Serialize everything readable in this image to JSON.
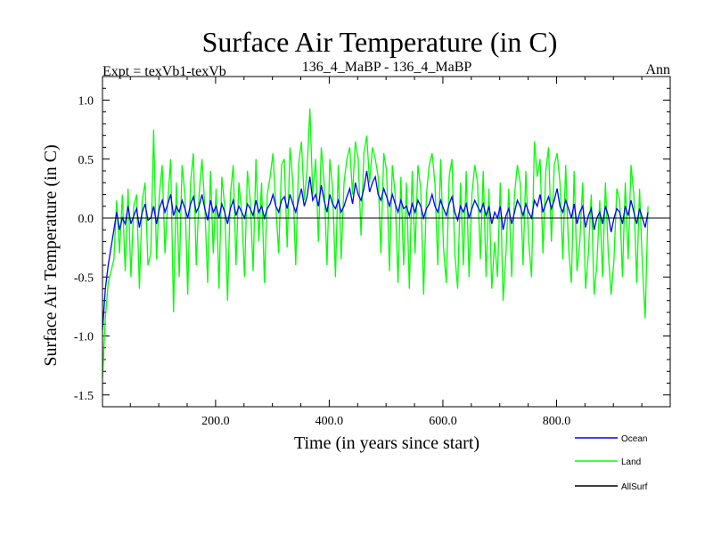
{
  "chart_data": {
    "type": "line",
    "title": "Surface Air Temperature (in C)",
    "subtitle_left": "Expt = texVb1-texVb",
    "subtitle_center": "136_4_MaBP - 136_4_MaBP",
    "subtitle_right": "Ann",
    "xlabel": "Time (in years since start)",
    "ylabel": "Surface Air Temperature (in C)",
    "xlim": [
      1,
      1000
    ],
    "ylim": [
      -1.6,
      1.2
    ],
    "x_ticks": [
      200,
      400,
      600,
      800
    ],
    "x_tick_labels": [
      "200.0",
      "400.0",
      "600.0",
      "800.0"
    ],
    "y_ticks": [
      -1.5,
      -1.0,
      -0.5,
      0.0,
      0.5,
      1.0
    ],
    "y_tick_labels": [
      "-1.5",
      "-1.0",
      "-0.5",
      "0.0",
      "0.5",
      "1.0"
    ],
    "zero_line": 0.0,
    "series": [
      {
        "name": "Ocean",
        "color": "#0000ff",
        "x_start": 1,
        "x_step": 5,
        "values": [
          -0.95,
          -0.6,
          -0.4,
          -0.25,
          -0.1,
          0.05,
          -0.1,
          0.0,
          -0.05,
          0.1,
          -0.05,
          0.02,
          0.08,
          -0.08,
          0.05,
          0.12,
          -0.02,
          0.0,
          0.1,
          -0.05,
          0.08,
          0.15,
          0.05,
          0.12,
          0.2,
          0.02,
          0.1,
          0.05,
          0.15,
          0.08,
          0.0,
          0.12,
          0.18,
          0.05,
          0.1,
          0.2,
          0.08,
          -0.02,
          0.15,
          0.05,
          0.1,
          0.0,
          0.12,
          0.05,
          -0.05,
          0.08,
          0.15,
          0.02,
          0.1,
          0.05,
          0.0,
          0.12,
          0.08,
          0.02,
          0.15,
          0.05,
          0.1,
          0.0,
          0.08,
          0.12,
          0.2,
          0.1,
          0.05,
          0.15,
          0.18,
          0.08,
          0.2,
          0.12,
          0.05,
          0.15,
          0.25,
          0.1,
          0.18,
          0.35,
          0.15,
          0.2,
          0.1,
          0.28,
          0.15,
          0.05,
          0.2,
          0.12,
          0.08,
          0.15,
          0.05,
          0.1,
          0.18,
          0.25,
          0.12,
          0.3,
          0.2,
          0.15,
          0.25,
          0.4,
          0.22,
          0.3,
          0.35,
          0.2,
          0.15,
          0.25,
          0.18,
          0.1,
          0.2,
          0.12,
          0.05,
          0.15,
          0.08,
          0.1,
          0.02,
          0.12,
          0.05,
          0.15,
          0.1,
          0.0,
          0.08,
          0.12,
          0.2,
          0.1,
          0.05,
          0.15,
          0.08,
          0.02,
          0.12,
          0.18,
          0.05,
          -0.02,
          0.1,
          0.05,
          0.12,
          0.0,
          0.08,
          0.15,
          0.1,
          0.05,
          0.12,
          0.02,
          0.1,
          -0.05,
          0.05,
          0.0,
          0.1,
          -0.1,
          0.02,
          0.08,
          -0.05,
          0.05,
          0.15,
          0.1,
          0.02,
          0.12,
          0.05,
          0.0,
          0.15,
          0.1,
          0.2,
          0.05,
          0.12,
          0.18,
          0.08,
          0.15,
          0.25,
          0.1,
          0.05,
          0.15,
          0.08,
          0.0,
          0.12,
          -0.05,
          0.05,
          0.1,
          -0.08,
          0.02,
          0.08,
          -0.1,
          0.0,
          0.05,
          -0.05,
          0.1,
          0.02,
          -0.12,
          0.0,
          0.08,
          0.05,
          -0.05,
          0.1,
          0.02,
          0.15,
          0.05,
          -0.05,
          0.08,
          0.0,
          -0.08,
          0.05
        ]
      },
      {
        "name": "Land",
        "color": "#00ff00",
        "x_start": 1,
        "x_step": 5,
        "values": [
          -1.35,
          -0.85,
          -0.55,
          -0.45,
          -0.35,
          0.15,
          -0.3,
          0.2,
          -0.45,
          0.25,
          -0.5,
          0.1,
          0.2,
          -0.6,
          0.15,
          0.3,
          -0.4,
          -0.3,
          0.75,
          -0.35,
          0.2,
          0.45,
          -0.3,
          0.15,
          0.5,
          -0.8,
          0.3,
          -0.5,
          0.45,
          0.2,
          -0.65,
          0.3,
          0.55,
          -0.4,
          0.2,
          0.5,
          0.1,
          -0.55,
          0.4,
          -0.3,
          0.25,
          -0.6,
          0.35,
          0.1,
          -0.7,
          0.2,
          0.45,
          -0.4,
          0.3,
          0.05,
          -0.5,
          0.4,
          0.15,
          -0.45,
          0.5,
          -0.2,
          0.3,
          -0.55,
          0.2,
          0.35,
          0.55,
          0.1,
          -0.3,
          0.45,
          0.5,
          -0.25,
          0.6,
          0.3,
          -0.4,
          0.45,
          0.65,
          0.15,
          0.4,
          0.93,
          0.2,
          0.5,
          -0.2,
          0.6,
          0.3,
          -0.4,
          0.5,
          0.25,
          -0.5,
          0.45,
          -0.35,
          0.3,
          0.5,
          0.6,
          0.2,
          0.65,
          0.5,
          -0.15,
          0.55,
          0.7,
          0.3,
          0.6,
          0.5,
          0.35,
          -0.3,
          0.55,
          0.4,
          -0.45,
          0.45,
          0.2,
          -0.55,
          0.35,
          -0.4,
          0.3,
          -0.6,
          0.4,
          -0.3,
          0.45,
          0.25,
          -0.65,
          0.2,
          0.45,
          0.55,
          0.3,
          -0.4,
          0.5,
          -0.25,
          -0.55,
          0.35,
          0.5,
          -0.3,
          -0.6,
          0.3,
          -0.4,
          0.4,
          -0.5,
          0.2,
          0.45,
          0.3,
          -0.35,
          0.4,
          -0.5,
          0.25,
          -0.6,
          -0.2,
          -0.5,
          0.3,
          -0.7,
          -0.3,
          0.25,
          -0.5,
          0.2,
          0.45,
          0.3,
          -0.4,
          0.4,
          -0.2,
          -0.5,
          0.65,
          0.35,
          0.5,
          -0.3,
          0.4,
          0.6,
          -0.2,
          0.45,
          0.55,
          0.3,
          -0.35,
          0.45,
          -0.25,
          -0.55,
          0.4,
          -0.45,
          -0.2,
          0.3,
          -0.6,
          -0.3,
          0.2,
          -0.65,
          -0.4,
          0.15,
          -0.5,
          0.3,
          -0.3,
          -0.65,
          -0.35,
          0.25,
          0.15,
          -0.5,
          0.3,
          -0.35,
          0.45,
          0.2,
          -0.55,
          0.25,
          -0.4,
          -0.85,
          0.1
        ]
      },
      {
        "name": "AllSurf",
        "color": "#000000",
        "values": []
      }
    ],
    "legend_position": "bottom-right"
  }
}
